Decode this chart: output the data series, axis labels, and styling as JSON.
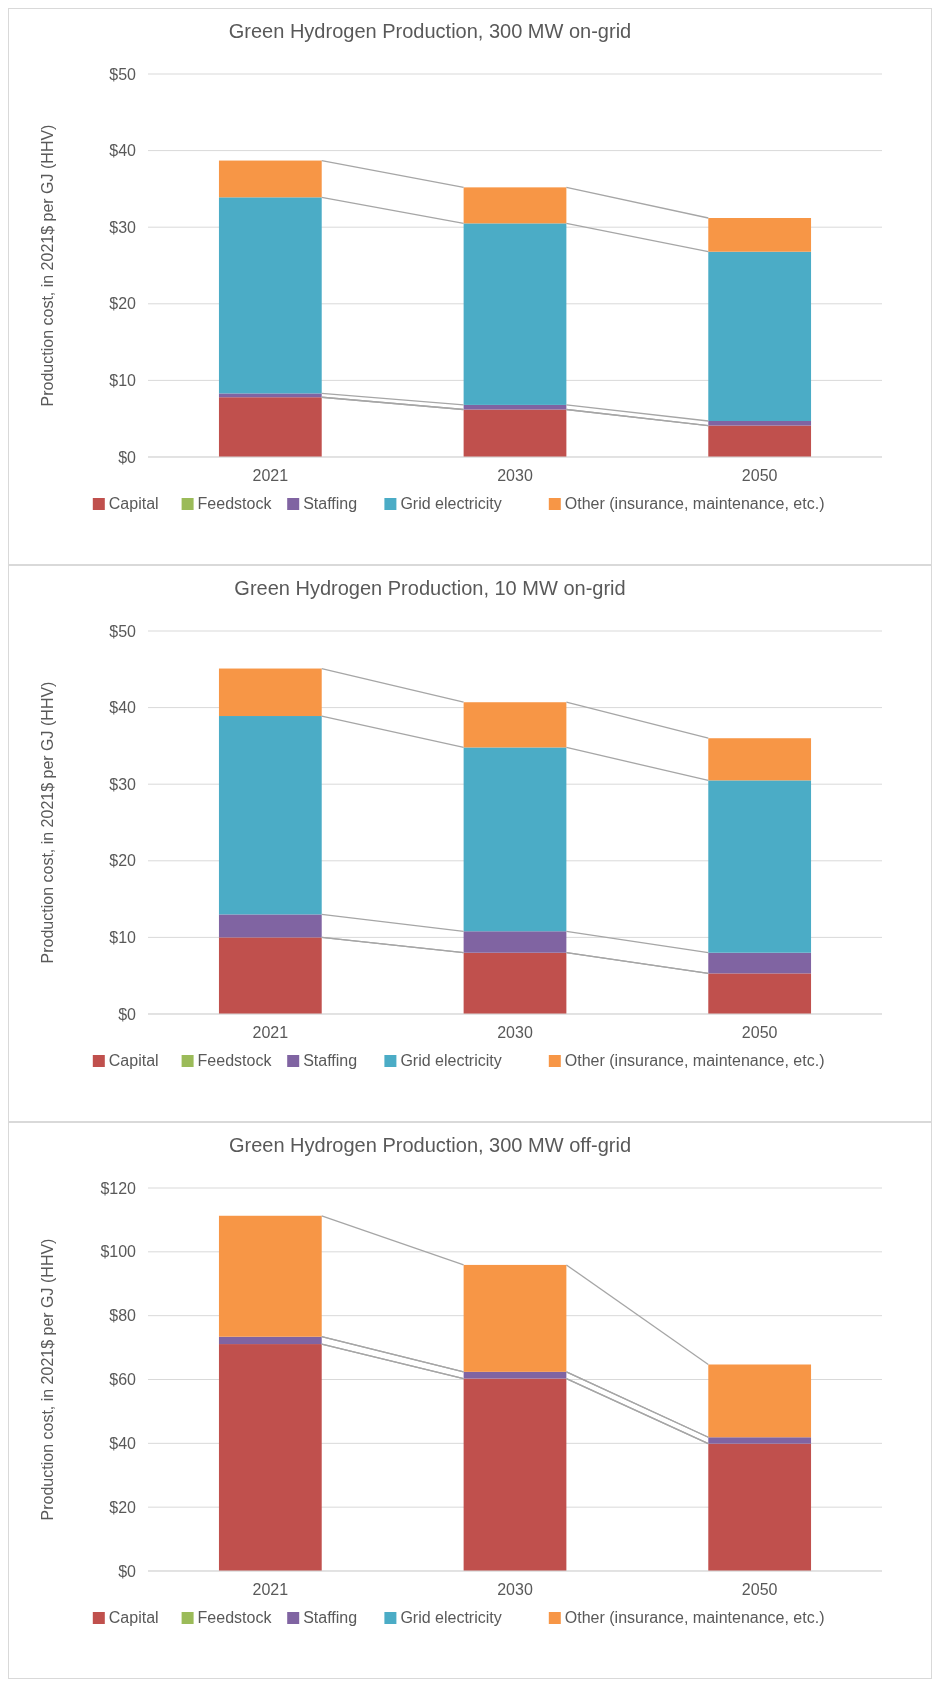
{
  "chart_data": [
    {
      "type": "bar",
      "stacked": true,
      "title": "Green Hydrogen Production, 300 MW on-grid",
      "ylabel": "Production cost, in 2021$ per GJ (HHV)",
      "categories": [
        "2021",
        "2030",
        "2050"
      ],
      "series": [
        {
          "name": "Capital",
          "color": "#c0504d",
          "values": [
            7.8,
            6.2,
            4.1
          ]
        },
        {
          "name": "Feedstock",
          "color": "#9bbb59",
          "values": [
            0,
            0,
            0
          ]
        },
        {
          "name": "Staffing",
          "color": "#8064a2",
          "values": [
            0.5,
            0.6,
            0.6
          ]
        },
        {
          "name": "Grid electricity",
          "color": "#4bacc6",
          "values": [
            25.6,
            23.7,
            22.1
          ]
        },
        {
          "name": "Other (insurance, maintenance, etc.)",
          "color": "#f79646",
          "values": [
            4.8,
            4.7,
            4.4
          ]
        }
      ],
      "ylim": [
        0,
        50
      ],
      "yticks": [
        {
          "value": 0,
          "label": "$0"
        },
        {
          "value": 10,
          "label": "$10"
        },
        {
          "value": 20,
          "label": "$20"
        },
        {
          "value": 30,
          "label": "$30"
        },
        {
          "value": 40,
          "label": "$40"
        },
        {
          "value": 50,
          "label": "$50"
        }
      ],
      "grid": "y",
      "legend": "bottom"
    },
    {
      "type": "bar",
      "stacked": true,
      "title": "Green Hydrogen Production, 10 MW on-grid",
      "ylabel": "Production cost, in 2021$ per GJ (HHV)",
      "categories": [
        "2021",
        "2030",
        "2050"
      ],
      "series": [
        {
          "name": "Capital",
          "color": "#c0504d",
          "values": [
            10.0,
            8.0,
            5.3
          ]
        },
        {
          "name": "Feedstock",
          "color": "#9bbb59",
          "values": [
            0,
            0,
            0
          ]
        },
        {
          "name": "Staffing",
          "color": "#8064a2",
          "values": [
            3.0,
            2.8,
            2.7
          ]
        },
        {
          "name": "Grid electricity",
          "color": "#4bacc6",
          "values": [
            25.9,
            24.0,
            22.5
          ]
        },
        {
          "name": "Other (insurance, maintenance, etc.)",
          "color": "#f79646",
          "values": [
            6.2,
            5.9,
            5.5
          ]
        }
      ],
      "ylim": [
        0,
        50
      ],
      "yticks": [
        {
          "value": 0,
          "label": "$0"
        },
        {
          "value": 10,
          "label": "$10"
        },
        {
          "value": 20,
          "label": "$20"
        },
        {
          "value": 30,
          "label": "$30"
        },
        {
          "value": 40,
          "label": "$40"
        },
        {
          "value": 50,
          "label": "$50"
        }
      ],
      "grid": "y",
      "legend": "bottom"
    },
    {
      "type": "bar",
      "stacked": true,
      "title": "Green Hydrogen Production, 300 MW off-grid",
      "ylabel": "Production cost, in 2021$ per GJ (HHV)",
      "categories": [
        "2021",
        "2030",
        "2050"
      ],
      "series": [
        {
          "name": "Capital",
          "color": "#c0504d",
          "values": [
            71.1,
            60.3,
            39.9
          ]
        },
        {
          "name": "Feedstock",
          "color": "#9bbb59",
          "values": [
            0,
            0,
            0
          ]
        },
        {
          "name": "Staffing",
          "color": "#8064a2",
          "values": [
            2.3,
            2.1,
            2.0
          ]
        },
        {
          "name": "Grid electricity",
          "color": "#4bacc6",
          "values": [
            0,
            0,
            0
          ]
        },
        {
          "name": "Other (insurance, maintenance, etc.)",
          "color": "#f79646",
          "values": [
            37.9,
            33.5,
            22.8
          ]
        }
      ],
      "ylim": [
        0,
        120
      ],
      "yticks": [
        {
          "value": 0,
          "label": "$0"
        },
        {
          "value": 20,
          "label": "$20"
        },
        {
          "value": 40,
          "label": "$40"
        },
        {
          "value": 60,
          "label": "$60"
        },
        {
          "value": 80,
          "label": "$80"
        },
        {
          "value": 100,
          "label": "$100"
        },
        {
          "value": 120,
          "label": "$120"
        }
      ],
      "grid": "y",
      "legend": "bottom"
    }
  ]
}
